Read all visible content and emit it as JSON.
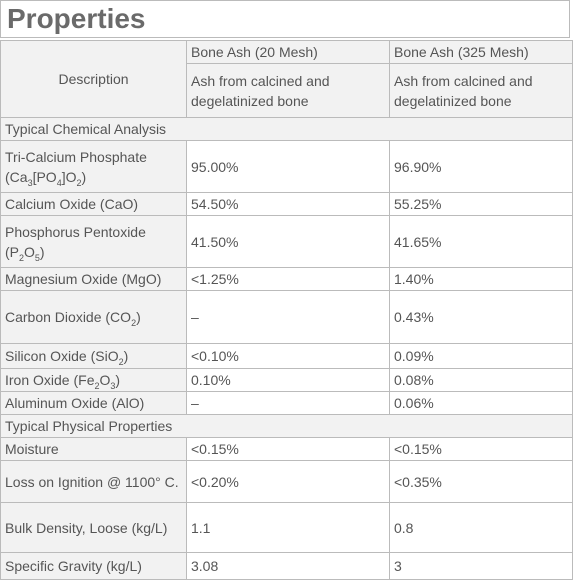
{
  "title": "Properties",
  "columns": {
    "a": "Bone Ash (20 Mesh)",
    "b": "Bone Ash (325 Mesh)"
  },
  "description": {
    "label": "Description",
    "a": "Ash from calcined and degelatinized bone",
    "b": "Ash from calcined and degelatinized bone"
  },
  "sections": {
    "chemical": "Typical Chemical Analysis",
    "physical": "Typical Physical Properties"
  },
  "chemical_rows": [
    {
      "name": "Tri-Calcium Phosphate",
      "formula_pre": "(Ca",
      "s1": "3",
      "f2": "[PO",
      "s2": "4",
      "f3": "]O",
      "s3": "2",
      "f4": ")",
      "a": "95.00%",
      "b": "96.90%"
    },
    {
      "name": "Calcium Oxide (CaO)",
      "a": "54.50%",
      "b": "55.25%"
    },
    {
      "name": "Phosphorus Pentoxide",
      "formula_pre": "(P",
      "s1": "2",
      "f2": "O",
      "s2": "5",
      "f3": ")",
      "a": "41.50%",
      "b": "41.65%"
    },
    {
      "name": "Magnesium Oxide (MgO)",
      "a": "<1.25%",
      "b": "1.40%"
    },
    {
      "pre": "Carbon Dioxide (CO",
      "sub": "2",
      "post": ")",
      "a": "–",
      "b": "0.43%"
    },
    {
      "pre": "Silicon Oxide (SiO",
      "sub": "2",
      "post": ")",
      "a": "<0.10%",
      "b": "0.09%"
    },
    {
      "pre": "Iron Oxide (Fe",
      "sub": "2",
      "mid": "O",
      "sub2": "3",
      "post": ")",
      "a": "0.10%",
      "b": "0.08%"
    },
    {
      "name": "Aluminum Oxide (AlO)",
      "a": "–",
      "b": "0.06%"
    }
  ],
  "physical_rows": [
    {
      "name": "Moisture",
      "a": "<0.15%",
      "b": "<0.15%"
    },
    {
      "name": "Loss on Ignition @ 1100° C.",
      "a": "<0.20%",
      "b": "<0.35%"
    },
    {
      "name": "Bulk Density, Loose (kg/L)",
      "a": "1.1",
      "b": "0.8"
    },
    {
      "name": "Specific Gravity (kg/L)",
      "a": "3.08",
      "b": "3"
    }
  ]
}
